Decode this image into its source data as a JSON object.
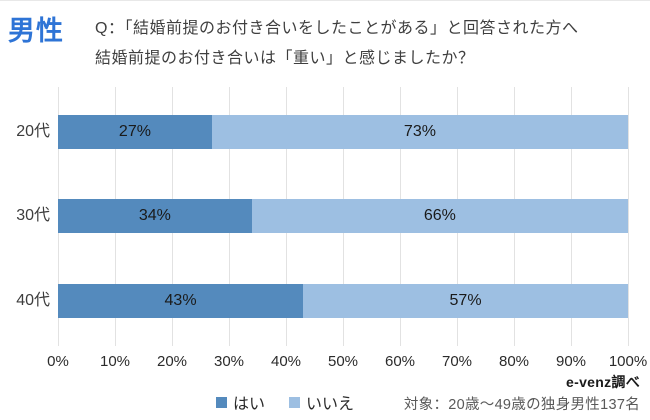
{
  "header": {
    "title": "男性",
    "question_line1": "Q：「結婚前提のお付き合いをしたことがある」と回答された方へ",
    "question_line2": "結婚前提のお付き合いは「重い」と感じましたか？"
  },
  "chart_data": {
    "type": "bar",
    "orientation": "horizontal",
    "stacked": true,
    "categories": [
      "20代",
      "30代",
      "40代"
    ],
    "series": [
      {
        "name": "はい",
        "color": "#548abd",
        "values": [
          27,
          34,
          43
        ],
        "labels": [
          "27%",
          "34%",
          "43%"
        ]
      },
      {
        "name": "いいえ",
        "color": "#9dbfe2",
        "values": [
          73,
          66,
          57
        ],
        "labels": [
          "73%",
          "66%",
          "57%"
        ]
      }
    ],
    "xlim": [
      0,
      100
    ],
    "tick_step": 10,
    "tick_labels": [
      "0%",
      "10%",
      "20%",
      "30%",
      "40%",
      "50%",
      "60%",
      "70%",
      "80%",
      "90%",
      "100%"
    ],
    "grid": "vertical",
    "legend_position": "bottom"
  },
  "footer": {
    "source": "e-venz調べ",
    "target": "対象：20歳〜49歳の独身男性137名"
  },
  "colors": {
    "title_blue": "#2e74d6",
    "bar_yes": "#548abd",
    "bar_no": "#9dbfe2",
    "gridline": "#e2e2e2"
  }
}
